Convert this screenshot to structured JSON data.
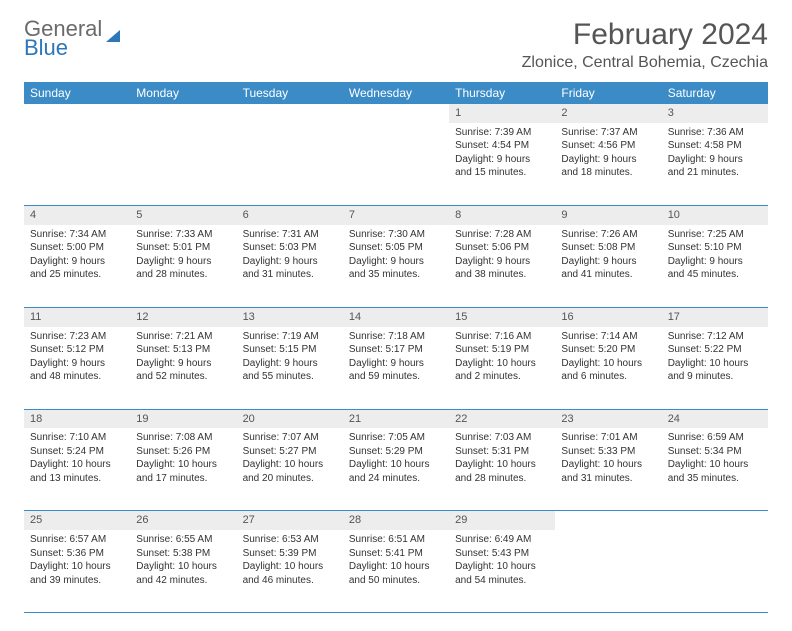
{
  "logo": {
    "part1": "General",
    "part2": "Blue"
  },
  "title": "February 2024",
  "location": "Zlonice, Central Bohemia, Czechia",
  "colors": {
    "header_bg": "#3b8bc7",
    "header_text": "#ffffff",
    "daynum_bg": "#ededed",
    "border": "#3b8bc7",
    "title_color": "#555555"
  },
  "weekdays": [
    "Sunday",
    "Monday",
    "Tuesday",
    "Wednesday",
    "Thursday",
    "Friday",
    "Saturday"
  ],
  "weeks": [
    {
      "nums": [
        "",
        "",
        "",
        "",
        "1",
        "2",
        "3"
      ],
      "cells": [
        null,
        null,
        null,
        null,
        {
          "sunrise": "Sunrise: 7:39 AM",
          "sunset": "Sunset: 4:54 PM",
          "day1": "Daylight: 9 hours",
          "day2": "and 15 minutes."
        },
        {
          "sunrise": "Sunrise: 7:37 AM",
          "sunset": "Sunset: 4:56 PM",
          "day1": "Daylight: 9 hours",
          "day2": "and 18 minutes."
        },
        {
          "sunrise": "Sunrise: 7:36 AM",
          "sunset": "Sunset: 4:58 PM",
          "day1": "Daylight: 9 hours",
          "day2": "and 21 minutes."
        }
      ]
    },
    {
      "nums": [
        "4",
        "5",
        "6",
        "7",
        "8",
        "9",
        "10"
      ],
      "cells": [
        {
          "sunrise": "Sunrise: 7:34 AM",
          "sunset": "Sunset: 5:00 PM",
          "day1": "Daylight: 9 hours",
          "day2": "and 25 minutes."
        },
        {
          "sunrise": "Sunrise: 7:33 AM",
          "sunset": "Sunset: 5:01 PM",
          "day1": "Daylight: 9 hours",
          "day2": "and 28 minutes."
        },
        {
          "sunrise": "Sunrise: 7:31 AM",
          "sunset": "Sunset: 5:03 PM",
          "day1": "Daylight: 9 hours",
          "day2": "and 31 minutes."
        },
        {
          "sunrise": "Sunrise: 7:30 AM",
          "sunset": "Sunset: 5:05 PM",
          "day1": "Daylight: 9 hours",
          "day2": "and 35 minutes."
        },
        {
          "sunrise": "Sunrise: 7:28 AM",
          "sunset": "Sunset: 5:06 PM",
          "day1": "Daylight: 9 hours",
          "day2": "and 38 minutes."
        },
        {
          "sunrise": "Sunrise: 7:26 AM",
          "sunset": "Sunset: 5:08 PM",
          "day1": "Daylight: 9 hours",
          "day2": "and 41 minutes."
        },
        {
          "sunrise": "Sunrise: 7:25 AM",
          "sunset": "Sunset: 5:10 PM",
          "day1": "Daylight: 9 hours",
          "day2": "and 45 minutes."
        }
      ]
    },
    {
      "nums": [
        "11",
        "12",
        "13",
        "14",
        "15",
        "16",
        "17"
      ],
      "cells": [
        {
          "sunrise": "Sunrise: 7:23 AM",
          "sunset": "Sunset: 5:12 PM",
          "day1": "Daylight: 9 hours",
          "day2": "and 48 minutes."
        },
        {
          "sunrise": "Sunrise: 7:21 AM",
          "sunset": "Sunset: 5:13 PM",
          "day1": "Daylight: 9 hours",
          "day2": "and 52 minutes."
        },
        {
          "sunrise": "Sunrise: 7:19 AM",
          "sunset": "Sunset: 5:15 PM",
          "day1": "Daylight: 9 hours",
          "day2": "and 55 minutes."
        },
        {
          "sunrise": "Sunrise: 7:18 AM",
          "sunset": "Sunset: 5:17 PM",
          "day1": "Daylight: 9 hours",
          "day2": "and 59 minutes."
        },
        {
          "sunrise": "Sunrise: 7:16 AM",
          "sunset": "Sunset: 5:19 PM",
          "day1": "Daylight: 10 hours",
          "day2": "and 2 minutes."
        },
        {
          "sunrise": "Sunrise: 7:14 AM",
          "sunset": "Sunset: 5:20 PM",
          "day1": "Daylight: 10 hours",
          "day2": "and 6 minutes."
        },
        {
          "sunrise": "Sunrise: 7:12 AM",
          "sunset": "Sunset: 5:22 PM",
          "day1": "Daylight: 10 hours",
          "day2": "and 9 minutes."
        }
      ]
    },
    {
      "nums": [
        "18",
        "19",
        "20",
        "21",
        "22",
        "23",
        "24"
      ],
      "cells": [
        {
          "sunrise": "Sunrise: 7:10 AM",
          "sunset": "Sunset: 5:24 PM",
          "day1": "Daylight: 10 hours",
          "day2": "and 13 minutes."
        },
        {
          "sunrise": "Sunrise: 7:08 AM",
          "sunset": "Sunset: 5:26 PM",
          "day1": "Daylight: 10 hours",
          "day2": "and 17 minutes."
        },
        {
          "sunrise": "Sunrise: 7:07 AM",
          "sunset": "Sunset: 5:27 PM",
          "day1": "Daylight: 10 hours",
          "day2": "and 20 minutes."
        },
        {
          "sunrise": "Sunrise: 7:05 AM",
          "sunset": "Sunset: 5:29 PM",
          "day1": "Daylight: 10 hours",
          "day2": "and 24 minutes."
        },
        {
          "sunrise": "Sunrise: 7:03 AM",
          "sunset": "Sunset: 5:31 PM",
          "day1": "Daylight: 10 hours",
          "day2": "and 28 minutes."
        },
        {
          "sunrise": "Sunrise: 7:01 AM",
          "sunset": "Sunset: 5:33 PM",
          "day1": "Daylight: 10 hours",
          "day2": "and 31 minutes."
        },
        {
          "sunrise": "Sunrise: 6:59 AM",
          "sunset": "Sunset: 5:34 PM",
          "day1": "Daylight: 10 hours",
          "day2": "and 35 minutes."
        }
      ]
    },
    {
      "nums": [
        "25",
        "26",
        "27",
        "28",
        "29",
        "",
        ""
      ],
      "cells": [
        {
          "sunrise": "Sunrise: 6:57 AM",
          "sunset": "Sunset: 5:36 PM",
          "day1": "Daylight: 10 hours",
          "day2": "and 39 minutes."
        },
        {
          "sunrise": "Sunrise: 6:55 AM",
          "sunset": "Sunset: 5:38 PM",
          "day1": "Daylight: 10 hours",
          "day2": "and 42 minutes."
        },
        {
          "sunrise": "Sunrise: 6:53 AM",
          "sunset": "Sunset: 5:39 PM",
          "day1": "Daylight: 10 hours",
          "day2": "and 46 minutes."
        },
        {
          "sunrise": "Sunrise: 6:51 AM",
          "sunset": "Sunset: 5:41 PM",
          "day1": "Daylight: 10 hours",
          "day2": "and 50 minutes."
        },
        {
          "sunrise": "Sunrise: 6:49 AM",
          "sunset": "Sunset: 5:43 PM",
          "day1": "Daylight: 10 hours",
          "day2": "and 54 minutes."
        },
        null,
        null
      ]
    }
  ]
}
